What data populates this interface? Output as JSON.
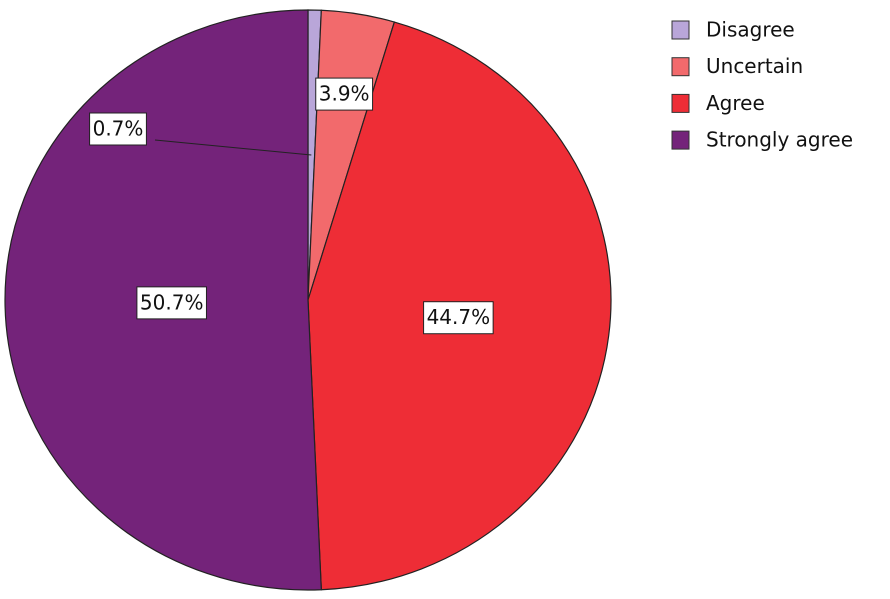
{
  "chart_data": {
    "type": "pie",
    "categories": [
      "Disagree",
      "Uncertain",
      "Agree",
      "Strongly agree"
    ],
    "values": [
      0.7,
      3.9,
      44.7,
      50.7
    ],
    "value_labels": [
      "0.7%",
      "3.9%",
      "44.7%",
      "50.7%"
    ],
    "colors": [
      "#b9a6d9",
      "#f26a6c",
      "#ee2d36",
      "#74237a"
    ],
    "legend": "top-right"
  }
}
